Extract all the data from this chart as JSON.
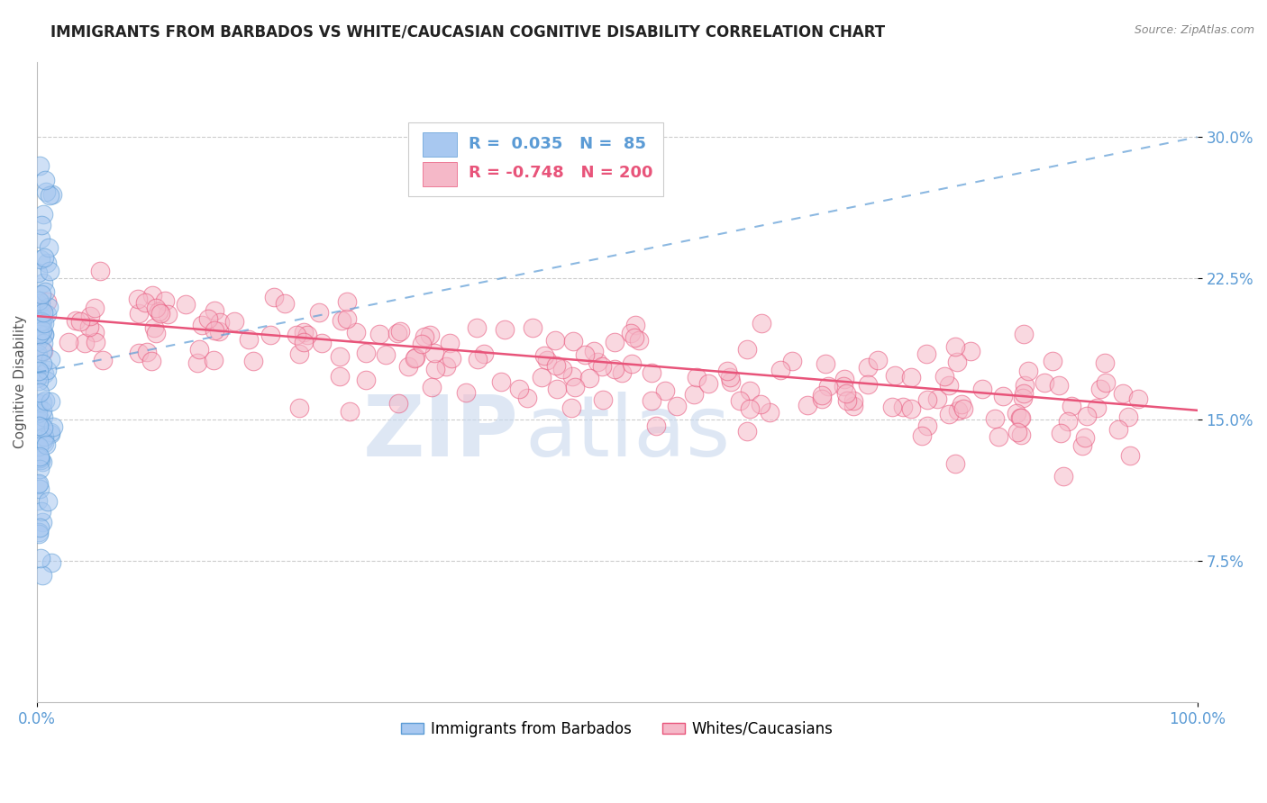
{
  "title": "IMMIGRANTS FROM BARBADOS VS WHITE/CAUCASIAN COGNITIVE DISABILITY CORRELATION CHART",
  "source": "Source: ZipAtlas.com",
  "ylabel": "Cognitive Disability",
  "xlim": [
    0.0,
    1.0
  ],
  "ylim": [
    0.0,
    0.34
  ],
  "yticks": [
    0.075,
    0.15,
    0.225,
    0.3
  ],
  "ytick_labels": [
    "7.5%",
    "15.0%",
    "22.5%",
    "30.0%"
  ],
  "xticks": [
    0.0,
    1.0
  ],
  "xtick_labels": [
    "0.0%",
    "100.0%"
  ],
  "blue_R": 0.035,
  "blue_N": 85,
  "pink_R": -0.748,
  "pink_N": 200,
  "blue_color": "#A8C8F0",
  "pink_color": "#F5B8C8",
  "blue_line_color": "#5B9BD5",
  "pink_line_color": "#E8547A",
  "blue_edge_color": "#5B9BD5",
  "pink_edge_color": "#E8547A",
  "legend_label_blue": "Immigrants from Barbados",
  "legend_label_pink": "Whites/Caucasians",
  "watermark_zip": "ZIP",
  "watermark_atlas": "atlas",
  "background_color": "#ffffff",
  "grid_color": "#cccccc",
  "title_color": "#222222",
  "axis_label_color": "#555555",
  "ytick_color": "#5B9BD5",
  "xtick_color": "#5B9BD5",
  "blue_trend_start_y": 0.175,
  "blue_trend_end_y": 0.3,
  "pink_trend_start_y": 0.205,
  "pink_trend_end_y": 0.155
}
